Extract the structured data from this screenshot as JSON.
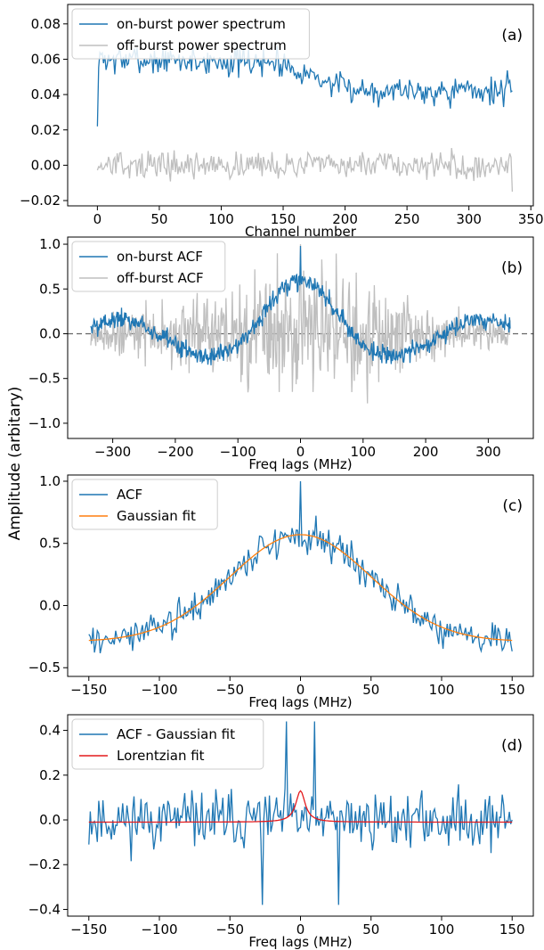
{
  "figure": {
    "shared_ylabel": "Amplitude (arbitary)"
  },
  "colors": {
    "blue": "#1f77b4",
    "gray": "#bfbfbf",
    "orange": "#ff7f0e",
    "red": "#e41a1c",
    "zero_line": "#666666"
  },
  "chart_data": [
    {
      "type": "line",
      "panel_label": "(a)",
      "xlabel": "Channel number",
      "ylabel": "",
      "xlim": [
        -24,
        352
      ],
      "ylim": [
        -0.023,
        0.091
      ],
      "xticks": [
        0,
        50,
        100,
        150,
        200,
        250,
        300,
        350
      ],
      "yticks": [
        -0.02,
        0.0,
        0.02,
        0.04,
        0.06,
        0.08
      ],
      "xtick_labels": [
        "0",
        "50",
        "100",
        "150",
        "200",
        "250",
        "300",
        "350"
      ],
      "ytick_labels": [
        "−0.02",
        "0.00",
        "0.02",
        "0.04",
        "0.06",
        "0.08"
      ],
      "legend": "top-left",
      "series": [
        {
          "name": "on-burst power spectrum",
          "color": "#1f77b4",
          "generator": {
            "kind": "noise",
            "x_start": 0,
            "x_end": 335,
            "n": 336,
            "trend": [
              [
                0,
                0.06
              ],
              [
                150,
                0.058
              ],
              [
                200,
                0.043
              ],
              [
                335,
                0.042
              ]
            ],
            "noise": 0.008,
            "seed": 7,
            "first_value": 0.022
          }
        },
        {
          "name": "off-burst power spectrum",
          "color": "#bfbfbf",
          "generator": {
            "kind": "noise",
            "x_start": 0,
            "x_end": 335,
            "n": 336,
            "trend": [
              [
                0,
                0.0
              ],
              [
                335,
                0.0
              ]
            ],
            "noise": 0.0075,
            "seed": 13,
            "last_value": -0.015
          }
        }
      ]
    },
    {
      "type": "line",
      "panel_label": "(b)",
      "xlabel": "Freq lags (MHz)",
      "ylabel": "",
      "xlim": [
        -372,
        372
      ],
      "ylim": [
        -1.17,
        1.08
      ],
      "xticks": [
        -300,
        -200,
        -100,
        0,
        100,
        200,
        300
      ],
      "yticks": [
        -1.0,
        -0.5,
        0.0,
        0.5,
        1.0
      ],
      "xtick_labels": [
        "−300",
        "−200",
        "−100",
        "0",
        "100",
        "200",
        "300"
      ],
      "ytick_labels": [
        "−1.0",
        "−0.5",
        "0.0",
        "0.5",
        "1.0"
      ],
      "legend": "top-left",
      "zero_line": true,
      "series": [
        {
          "name": "off-burst ACF",
          "color": "#bfbfbf",
          "generator": {
            "kind": "off_acf",
            "x_start": -335,
            "x_end": 335,
            "n": 671,
            "seed": 21
          }
        },
        {
          "name": "on-burst ACF",
          "color": "#1f77b4",
          "generator": {
            "kind": "on_acf",
            "x_start": -335,
            "x_end": 335,
            "n": 671,
            "seed": 5
          }
        }
      ]
    },
    {
      "type": "line",
      "panel_label": "(c)",
      "xlabel": "Freq lags (MHz)",
      "ylabel": "",
      "xlim": [
        -165,
        165
      ],
      "ylim": [
        -0.57,
        1.05
      ],
      "xticks": [
        -150,
        -100,
        -50,
        0,
        50,
        100,
        150
      ],
      "yticks": [
        -0.5,
        0.0,
        0.5,
        1.0
      ],
      "xtick_labels": [
        "−150",
        "−100",
        "−50",
        "0",
        "50",
        "100",
        "150"
      ],
      "ytick_labels": [
        "−0.5",
        "0.0",
        "0.5",
        "1.0"
      ],
      "legend": "top-left",
      "series": [
        {
          "name": "ACF",
          "color": "#1f77b4",
          "generator": {
            "kind": "gauss_noise",
            "x_start": -150,
            "x_end": 150,
            "n": 301,
            "amp": 0.86,
            "sigma": 50,
            "offset": -0.29,
            "noise": 0.13,
            "seed": 3,
            "center_value": 1.0
          }
        },
        {
          "name": "Gaussian fit",
          "color": "#ff7f0e",
          "generator": {
            "kind": "gauss",
            "x_start": -150,
            "x_end": 150,
            "n": 301,
            "amp": 0.86,
            "sigma": 50,
            "offset": -0.29
          }
        }
      ]
    },
    {
      "type": "line",
      "panel_label": "(d)",
      "xlabel": "Freq lags (MHz)",
      "ylabel": "",
      "xlim": [
        -165,
        165
      ],
      "ylim": [
        -0.43,
        0.47
      ],
      "xticks": [
        -150,
        -100,
        -50,
        0,
        50,
        100,
        150
      ],
      "yticks": [
        -0.4,
        -0.2,
        0.0,
        0.2,
        0.4
      ],
      "xtick_labels": [
        "−150",
        "−100",
        "−50",
        "0",
        "50",
        "100",
        "150"
      ],
      "ytick_labels": [
        "−0.4",
        "−0.2",
        "0.0",
        "0.2",
        "0.4"
      ],
      "legend": "top-left",
      "series": [
        {
          "name": "ACF - Gaussian fit",
          "color": "#1f77b4",
          "generator": {
            "kind": "noise",
            "x_start": -150,
            "x_end": 150,
            "n": 301,
            "trend": [
              [
                -150,
                0.0
              ],
              [
                150,
                0.0
              ]
            ],
            "noise": 0.12,
            "seed": 11,
            "spikes": [
              [
                -27,
                -0.38
              ],
              [
                27,
                -0.38
              ],
              [
                -10,
                0.44
              ],
              [
                10,
                0.44
              ]
            ]
          }
        },
        {
          "name": "Lorentzian fit",
          "color": "#e41a1c",
          "generator": {
            "kind": "lorentz",
            "x_start": -150,
            "x_end": 150,
            "n": 301,
            "amp": 0.14,
            "gamma": 4,
            "offset": -0.01
          }
        }
      ]
    }
  ]
}
